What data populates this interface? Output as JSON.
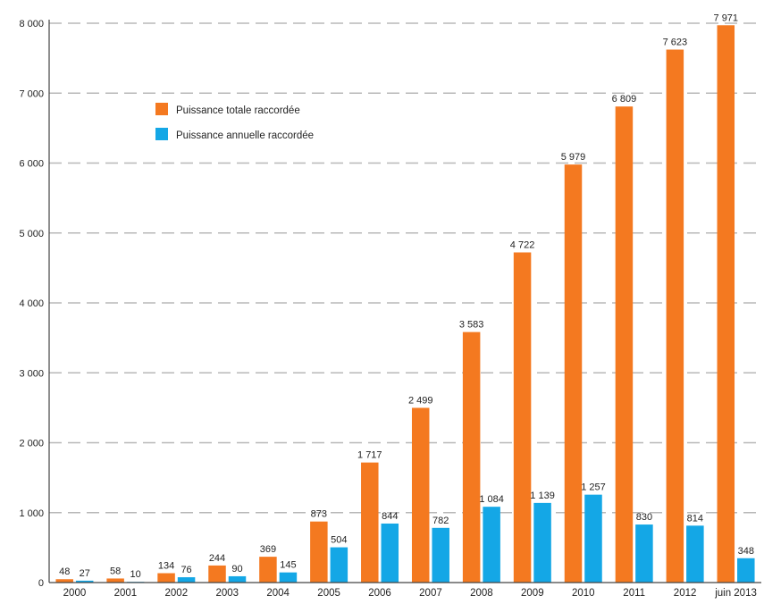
{
  "chart_data": {
    "type": "bar",
    "categories": [
      "2000",
      "2001",
      "2002",
      "2003",
      "2004",
      "2005",
      "2006",
      "2007",
      "2008",
      "2009",
      "2010",
      "2011",
      "2012",
      "juin 2013"
    ],
    "series": [
      {
        "name": "Puissance totale raccordée",
        "color": "#f47920",
        "values": [
          48,
          58,
          134,
          244,
          369,
          873,
          1717,
          2499,
          3583,
          4722,
          5979,
          6809,
          7623,
          7971
        ],
        "labels": [
          "48",
          "58",
          "134",
          "244",
          "369",
          "873",
          "1 717",
          "2 499",
          "3 583",
          "4 722",
          "5 979",
          "6 809",
          "7 623",
          "7 971"
        ]
      },
      {
        "name": "Puissance annuelle raccordée",
        "color": "#14a7e6",
        "values": [
          27,
          10,
          76,
          90,
          145,
          504,
          844,
          782,
          1084,
          1139,
          1257,
          830,
          814,
          348
        ],
        "labels": [
          "27",
          "10",
          "76",
          "90",
          "145",
          "504",
          "844",
          "782",
          "1 084",
          "1 139",
          "1 257",
          "830",
          "814",
          "348"
        ]
      }
    ],
    "yticks": [
      0,
      1000,
      2000,
      3000,
      4000,
      5000,
      6000,
      7000,
      8000
    ],
    "ytick_labels": [
      "0",
      "1 000",
      "2 000",
      "3 000",
      "4 000",
      "5 000",
      "6 000",
      "7 000",
      "8 000"
    ],
    "ylim": [
      0,
      8000
    ],
    "grid": "horizontal dashed",
    "legend_position": "top-left"
  }
}
